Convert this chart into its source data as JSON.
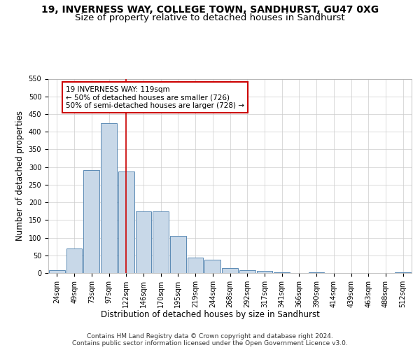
{
  "title_line1": "19, INVERNESS WAY, COLLEGE TOWN, SANDHURST, GU47 0XG",
  "title_line2": "Size of property relative to detached houses in Sandhurst",
  "xlabel": "Distribution of detached houses by size in Sandhurst",
  "ylabel": "Number of detached properties",
  "categories": [
    "24sqm",
    "49sqm",
    "73sqm",
    "97sqm",
    "122sqm",
    "146sqm",
    "170sqm",
    "195sqm",
    "219sqm",
    "244sqm",
    "268sqm",
    "292sqm",
    "317sqm",
    "341sqm",
    "366sqm",
    "390sqm",
    "414sqm",
    "439sqm",
    "463sqm",
    "488sqm",
    "512sqm"
  ],
  "values": [
    7,
    70,
    291,
    425,
    288,
    175,
    175,
    105,
    43,
    37,
    14,
    7,
    5,
    2,
    0,
    2,
    0,
    0,
    0,
    0,
    2
  ],
  "bar_color": "#c8d8e8",
  "bar_edge_color": "#5b8ab5",
  "vline_x": 4,
  "vline_color": "#cc0000",
  "annotation_text": "19 INVERNESS WAY: 119sqm\n← 50% of detached houses are smaller (726)\n50% of semi-detached houses are larger (728) →",
  "annotation_box_color": "#ffffff",
  "annotation_box_edge": "#cc0000",
  "ylim": [
    0,
    550
  ],
  "yticks": [
    0,
    50,
    100,
    150,
    200,
    250,
    300,
    350,
    400,
    450,
    500,
    550
  ],
  "footer": "Contains HM Land Registry data © Crown copyright and database right 2024.\nContains public sector information licensed under the Open Government Licence v3.0.",
  "bg_color": "#ffffff",
  "grid_color": "#cccccc",
  "title_fontsize": 10,
  "subtitle_fontsize": 9.5,
  "axis_label_fontsize": 8.5,
  "tick_fontsize": 7,
  "footer_fontsize": 6.5
}
